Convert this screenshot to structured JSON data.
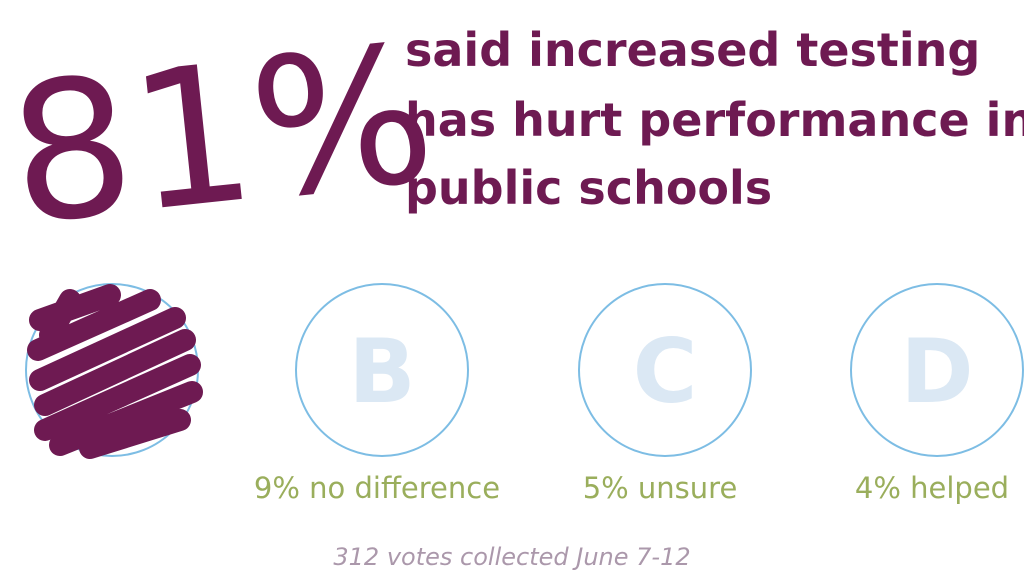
{
  "headline": {
    "stat": "81%",
    "lines": [
      "said increased testing",
      "has hurt performance in",
      "public schools"
    ]
  },
  "options": [
    {
      "letter": "B",
      "label": "9% no difference"
    },
    {
      "letter": "C",
      "label": "5% unsure"
    },
    {
      "letter": "D",
      "label": "4% helped"
    }
  ],
  "footer": "312 votes collected June 7-12"
}
